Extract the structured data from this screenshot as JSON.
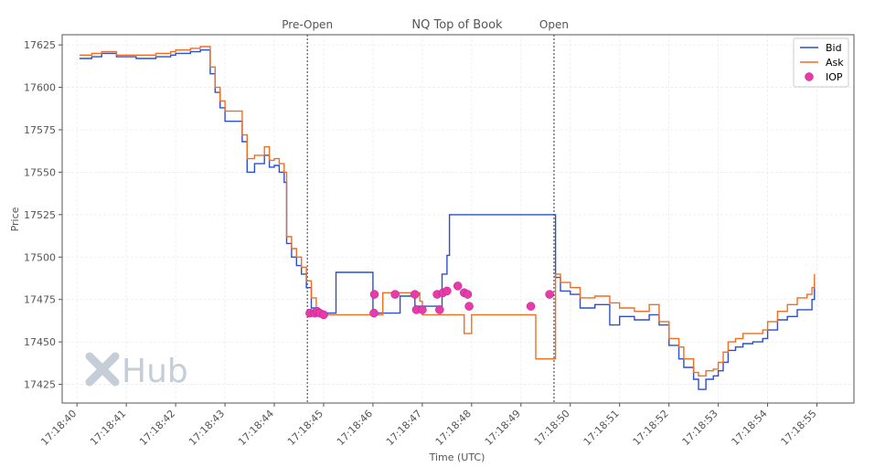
{
  "chart_data": {
    "type": "line",
    "title": "NQ Top of Book",
    "xlabel": "Time (UTC)",
    "ylabel": "Price",
    "xlim": [
      -0.3,
      15.75
    ],
    "ylim": [
      17414,
      17631
    ],
    "x_ticks": [
      0,
      1,
      2,
      3,
      4,
      5,
      6,
      7,
      8,
      9,
      10,
      11,
      12,
      13,
      14,
      15
    ],
    "x_tick_labels": [
      "17:18:40",
      "17:18:41",
      "17:18:42",
      "17:18:43",
      "17:18:44",
      "17:18:45",
      "17:18:46",
      "17:18:47",
      "17:18:48",
      "17:18:49",
      "17:18:50",
      "17:18:51",
      "17:18:52",
      "17:18:53",
      "17:18:54",
      "17:18:55"
    ],
    "y_ticks": [
      17425,
      17450,
      17475,
      17500,
      17525,
      17550,
      17575,
      17600,
      17625
    ],
    "grid": true,
    "legend_position": "top-right",
    "phase_markers": [
      {
        "label": "Pre-Open",
        "x": 4.67
      },
      {
        "label": "Open",
        "x": 9.67
      }
    ],
    "series": [
      {
        "name": "Bid",
        "kind": "step",
        "color": "#2b4fcf",
        "points": [
          [
            0.05,
            17617
          ],
          [
            0.3,
            17618
          ],
          [
            0.5,
            17620
          ],
          [
            0.8,
            17618
          ],
          [
            1.2,
            17617
          ],
          [
            1.6,
            17618
          ],
          [
            1.9,
            17619
          ],
          [
            2.0,
            17620
          ],
          [
            2.3,
            17621
          ],
          [
            2.5,
            17622
          ],
          [
            2.6,
            17622
          ],
          [
            2.7,
            17608
          ],
          [
            2.8,
            17597
          ],
          [
            2.9,
            17588
          ],
          [
            3.0,
            17580
          ],
          [
            3.3,
            17580
          ],
          [
            3.35,
            17568
          ],
          [
            3.45,
            17550
          ],
          [
            3.6,
            17555
          ],
          [
            3.7,
            17555
          ],
          [
            3.8,
            17560
          ],
          [
            3.9,
            17553
          ],
          [
            4.0,
            17554
          ],
          [
            4.1,
            17550
          ],
          [
            4.2,
            17544
          ],
          [
            4.25,
            17508
          ],
          [
            4.35,
            17500
          ],
          [
            4.45,
            17495
          ],
          [
            4.55,
            17490
          ],
          [
            4.65,
            17482
          ],
          [
            4.75,
            17470
          ],
          [
            4.85,
            17468
          ],
          [
            5.0,
            17467
          ],
          [
            5.2,
            17467
          ],
          [
            5.25,
            17491
          ],
          [
            5.8,
            17491
          ],
          [
            5.9,
            17491
          ],
          [
            6.0,
            17467
          ],
          [
            6.5,
            17467
          ],
          [
            6.55,
            17477
          ],
          [
            6.8,
            17477
          ],
          [
            6.85,
            17471
          ],
          [
            7.35,
            17471
          ],
          [
            7.4,
            17490
          ],
          [
            7.5,
            17501
          ],
          [
            7.55,
            17525
          ],
          [
            9.67,
            17525
          ],
          [
            9.7,
            17488
          ],
          [
            9.8,
            17480
          ],
          [
            10.0,
            17478
          ],
          [
            10.2,
            17470
          ],
          [
            10.5,
            17472
          ],
          [
            10.8,
            17460
          ],
          [
            11.0,
            17465
          ],
          [
            11.3,
            17463
          ],
          [
            11.6,
            17466
          ],
          [
            11.8,
            17460
          ],
          [
            12.0,
            17448
          ],
          [
            12.2,
            17440
          ],
          [
            12.3,
            17435
          ],
          [
            12.5,
            17428
          ],
          [
            12.6,
            17422
          ],
          [
            12.75,
            17428
          ],
          [
            12.9,
            17430
          ],
          [
            13.0,
            17433
          ],
          [
            13.1,
            17438
          ],
          [
            13.2,
            17445
          ],
          [
            13.35,
            17447
          ],
          [
            13.5,
            17449
          ],
          [
            13.7,
            17450
          ],
          [
            13.9,
            17452
          ],
          [
            14.0,
            17457
          ],
          [
            14.2,
            17463
          ],
          [
            14.4,
            17465
          ],
          [
            14.6,
            17469
          ],
          [
            14.8,
            17469
          ],
          [
            14.9,
            17475
          ],
          [
            14.95,
            17485
          ]
        ]
      },
      {
        "name": "Ask",
        "kind": "step",
        "color": "#ee6f23",
        "points": [
          [
            0.05,
            17619
          ],
          [
            0.3,
            17620
          ],
          [
            0.5,
            17621
          ],
          [
            0.8,
            17619
          ],
          [
            1.2,
            17619
          ],
          [
            1.6,
            17620
          ],
          [
            1.9,
            17621
          ],
          [
            2.0,
            17622
          ],
          [
            2.3,
            17623
          ],
          [
            2.5,
            17624
          ],
          [
            2.6,
            17624
          ],
          [
            2.7,
            17612
          ],
          [
            2.8,
            17600
          ],
          [
            2.9,
            17592
          ],
          [
            3.0,
            17586
          ],
          [
            3.3,
            17586
          ],
          [
            3.35,
            17572
          ],
          [
            3.45,
            17558
          ],
          [
            3.6,
            17560
          ],
          [
            3.7,
            17560
          ],
          [
            3.8,
            17565
          ],
          [
            3.9,
            17557
          ],
          [
            4.0,
            17558
          ],
          [
            4.1,
            17555
          ],
          [
            4.2,
            17550
          ],
          [
            4.25,
            17512
          ],
          [
            4.35,
            17505
          ],
          [
            4.45,
            17500
          ],
          [
            4.55,
            17494
          ],
          [
            4.65,
            17486
          ],
          [
            4.75,
            17476
          ],
          [
            4.85,
            17466
          ],
          [
            5.0,
            17466
          ],
          [
            6.0,
            17466
          ],
          [
            6.2,
            17479
          ],
          [
            6.9,
            17479
          ],
          [
            6.95,
            17474
          ],
          [
            7.0,
            17466
          ],
          [
            7.5,
            17466
          ],
          [
            7.6,
            17466
          ],
          [
            7.8,
            17466
          ],
          [
            7.85,
            17455
          ],
          [
            8.0,
            17466
          ],
          [
            9.25,
            17466
          ],
          [
            9.3,
            17440
          ],
          [
            9.67,
            17440
          ],
          [
            9.7,
            17490
          ],
          [
            9.8,
            17485
          ],
          [
            10.0,
            17482
          ],
          [
            10.2,
            17476
          ],
          [
            10.5,
            17477
          ],
          [
            10.8,
            17473
          ],
          [
            11.0,
            17470
          ],
          [
            11.3,
            17468
          ],
          [
            11.6,
            17472
          ],
          [
            11.8,
            17462
          ],
          [
            12.0,
            17452
          ],
          [
            12.2,
            17447
          ],
          [
            12.3,
            17440
          ],
          [
            12.5,
            17432
          ],
          [
            12.6,
            17430
          ],
          [
            12.75,
            17433
          ],
          [
            12.9,
            17434
          ],
          [
            13.0,
            17438
          ],
          [
            13.1,
            17444
          ],
          [
            13.2,
            17450
          ],
          [
            13.35,
            17452
          ],
          [
            13.5,
            17455
          ],
          [
            13.7,
            17455
          ],
          [
            13.9,
            17457
          ],
          [
            14.0,
            17462
          ],
          [
            14.2,
            17468
          ],
          [
            14.4,
            17472
          ],
          [
            14.6,
            17476
          ],
          [
            14.8,
            17478
          ],
          [
            14.9,
            17482
          ],
          [
            14.95,
            17490
          ]
        ]
      },
      {
        "name": "IOP",
        "kind": "scatter",
        "color": "#e83aab",
        "points": [
          [
            4.72,
            17467
          ],
          [
            4.82,
            17467
          ],
          [
            4.87,
            17468
          ],
          [
            4.92,
            17467
          ],
          [
            5.0,
            17466
          ],
          [
            6.02,
            17467
          ],
          [
            6.03,
            17478
          ],
          [
            6.45,
            17478
          ],
          [
            6.85,
            17478
          ],
          [
            6.88,
            17469
          ],
          [
            7.0,
            17469
          ],
          [
            7.3,
            17478
          ],
          [
            7.35,
            17469
          ],
          [
            7.42,
            17479
          ],
          [
            7.5,
            17480
          ],
          [
            7.72,
            17483
          ],
          [
            7.85,
            17479
          ],
          [
            7.92,
            17478
          ],
          [
            7.95,
            17471
          ],
          [
            9.2,
            17471
          ],
          [
            9.58,
            17478
          ]
        ]
      }
    ]
  },
  "watermark": {
    "text": "Hub"
  }
}
